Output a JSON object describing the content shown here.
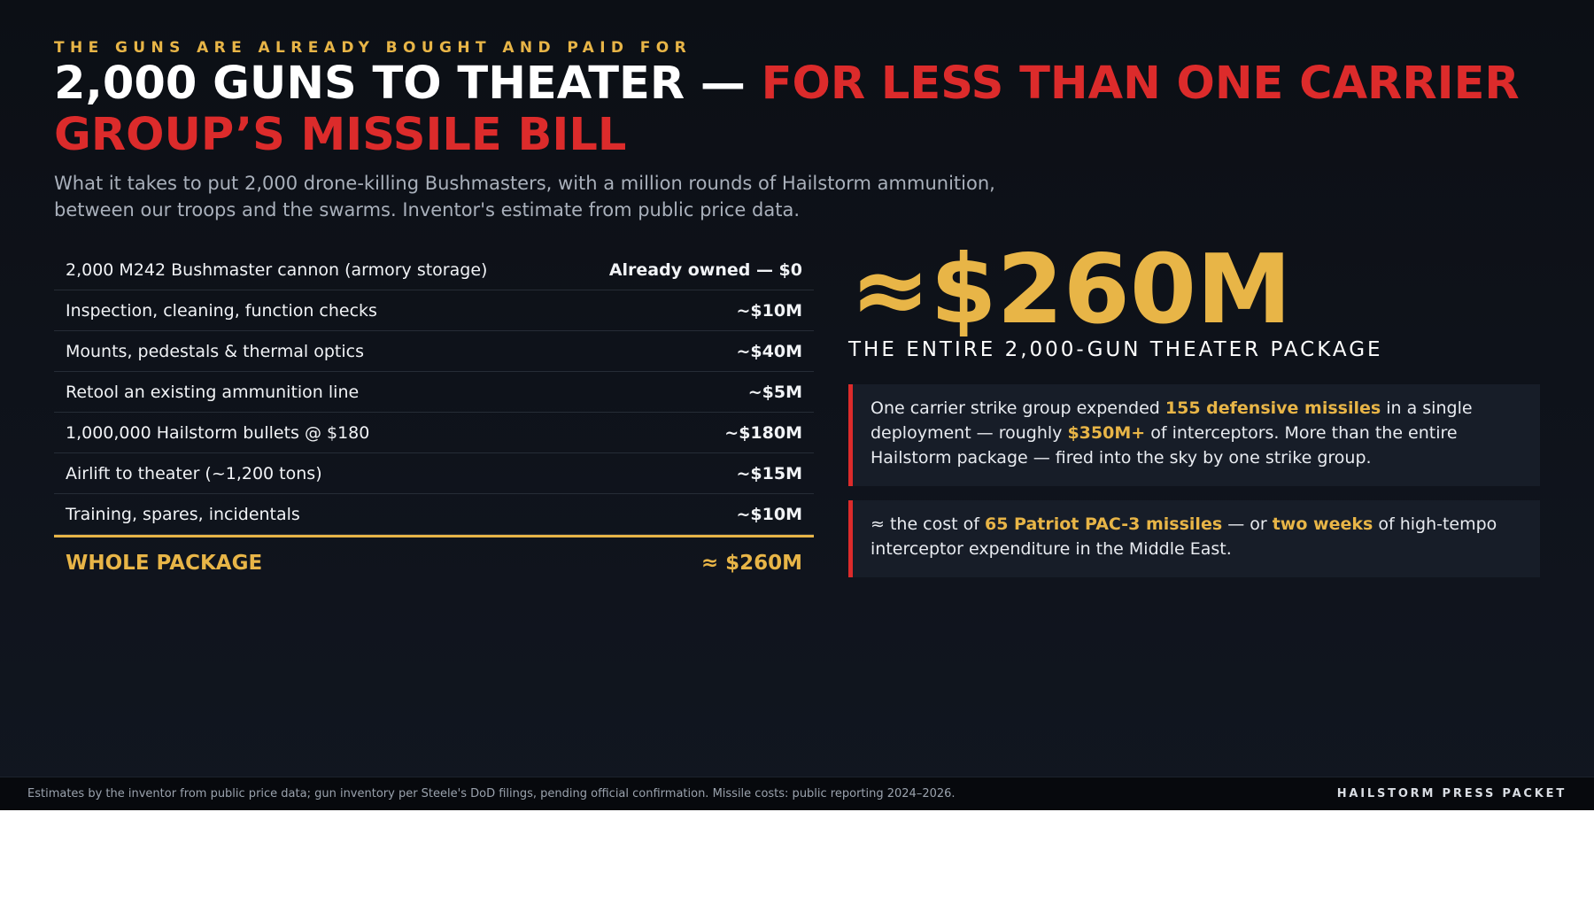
{
  "eyebrow": "THE GUNS ARE ALREADY BOUGHT AND PAID FOR",
  "headline": {
    "lead": "2,000 GUNS TO THEATER — ",
    "accent": "FOR LESS THAN ONE CARRIER GROUP’S MISSILE BILL"
  },
  "subtitle": {
    "line1": "What it takes to put 2,000 drone-killing Bushmasters, with a million rounds of Hailstorm ammunition,",
    "line2": "between our troops and the swarms. Inventor's estimate from public price data."
  },
  "cost_table": {
    "rows": [
      {
        "label": "2,000 M242 Bushmaster cannon (armory storage)",
        "value": "Already owned — $0"
      },
      {
        "label": "Inspection, cleaning, function checks",
        "value": "~$10M"
      },
      {
        "label": "Mounts, pedestals & thermal optics",
        "value": "~$40M"
      },
      {
        "label": "Retool an existing ammunition line",
        "value": "~$5M"
      },
      {
        "label": "1,000,000 Hailstorm bullets @ $180",
        "value": "~$180M"
      },
      {
        "label": "Airlift to theater (~1,200 tons)",
        "value": "~$15M"
      },
      {
        "label": "Training, spares, incidentals",
        "value": "~$10M"
      }
    ],
    "total": {
      "label": "WHOLE PACKAGE",
      "value": "≈ $260M"
    }
  },
  "highlight": {
    "number": "≈$260M",
    "caption": "THE ENTIRE 2,000-GUN THEATER PACKAGE"
  },
  "callouts": {
    "first": {
      "t1": "One carrier strike group expended ",
      "h1": "155 defensive missiles",
      "t2": " in a single deployment — roughly ",
      "h2": "$350M+",
      "t3": " of interceptors. More than the entire Hailstorm package — fired into the sky by one strike group."
    },
    "second": {
      "t1": "≈ the cost of ",
      "h1": "65 Patriot PAC-3 missiles",
      "t2": " — or ",
      "h2": "two weeks",
      "t3": " of high-tempo interceptor expenditure in the Middle East."
    }
  },
  "footer": {
    "note": "Estimates by the inventor from public price data; gun inventory per Steele's DoD filings, pending official confirmation. Missile costs: public reporting 2024–2026.",
    "brand": "HAILSTORM PRESS PACKET"
  },
  "colors": {
    "background": "#0c0f15",
    "gold": "#e8b547",
    "red": "#dc2b2b",
    "text": "#f1f3f6",
    "muted": "#a9b0bb"
  }
}
